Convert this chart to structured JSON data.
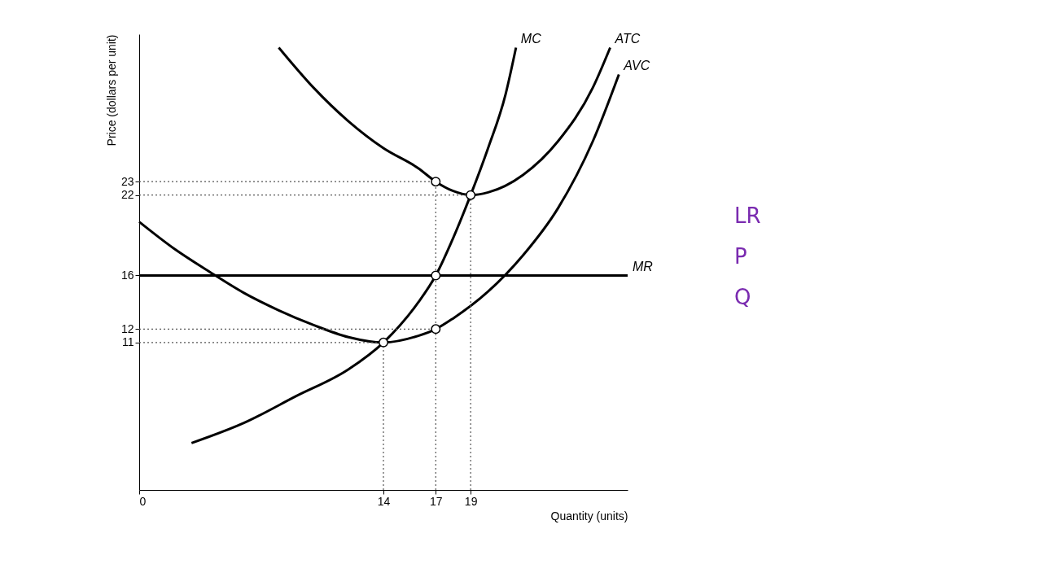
{
  "chart_data": {
    "type": "line",
    "xlabel": "Quantity (units)",
    "ylabel": "Price (dollars per unit)",
    "xlim": [
      0,
      28
    ],
    "xticks": [
      0,
      14,
      17,
      19
    ],
    "ylim": [
      0,
      34
    ],
    "yticks": [
      11,
      12,
      16,
      22,
      23
    ],
    "series": [
      {
        "name": "MC",
        "color": "#000000",
        "x": [
          3,
          6,
          9,
          12,
          14,
          16,
          17,
          18,
          19,
          20,
          21,
          21.6
        ],
        "values": [
          3.5,
          5,
          7,
          9,
          11,
          14,
          16,
          18.8,
          22,
          25.5,
          29.5,
          33
        ]
      },
      {
        "name": "ATC",
        "color": "#000000",
        "x": [
          8,
          10,
          12,
          14,
          16,
          17,
          18,
          19,
          20,
          22,
          24,
          26,
          27
        ],
        "values": [
          33,
          30,
          27.5,
          25.5,
          24,
          23,
          22.3,
          22,
          22.2,
          23.5,
          26,
          30,
          33
        ]
      },
      {
        "name": "AVC",
        "color": "#000000",
        "x": [
          0,
          2,
          4,
          6,
          8,
          10,
          12,
          14,
          16,
          17,
          18,
          20,
          22,
          24,
          26,
          27.5
        ],
        "values": [
          20,
          18,
          16.3,
          14.7,
          13.4,
          12.3,
          11.4,
          11,
          11.5,
          12,
          12.8,
          14.8,
          17.5,
          21,
          26,
          31
        ]
      },
      {
        "name": "MR",
        "color": "#000000",
        "x": [
          0,
          28
        ],
        "values": [
          16,
          16
        ]
      },
      {
        "line_style": "dotted",
        "color": "#555555",
        "x": [
          14,
          14
        ],
        "values": [
          0,
          11
        ]
      },
      {
        "line_style": "dotted",
        "color": "#555555",
        "x": [
          17,
          17
        ],
        "values": [
          0,
          23
        ]
      },
      {
        "line_style": "dotted",
        "color": "#555555",
        "x": [
          19,
          19
        ],
        "values": [
          0,
          22
        ]
      },
      {
        "line_style": "dotted",
        "color": "#555555",
        "x": [
          0,
          17
        ],
        "values": [
          23,
          23
        ]
      },
      {
        "line_style": "dotted",
        "color": "#555555",
        "x": [
          0,
          19
        ],
        "values": [
          22,
          22
        ]
      },
      {
        "line_style": "dotted",
        "color": "#555555",
        "x": [
          0,
          17
        ],
        "values": [
          12,
          12
        ]
      },
      {
        "line_style": "dotted",
        "color": "#555555",
        "x": [
          0,
          14
        ],
        "values": [
          11,
          11
        ]
      },
      {
        "type": "scatter",
        "marker": "circle",
        "color": "#000000",
        "x": [
          14,
          17,
          17,
          17,
          19
        ],
        "values": [
          11,
          12,
          16,
          23,
          22
        ]
      }
    ],
    "annotations": [
      "LR",
      "P",
      "Q"
    ]
  }
}
